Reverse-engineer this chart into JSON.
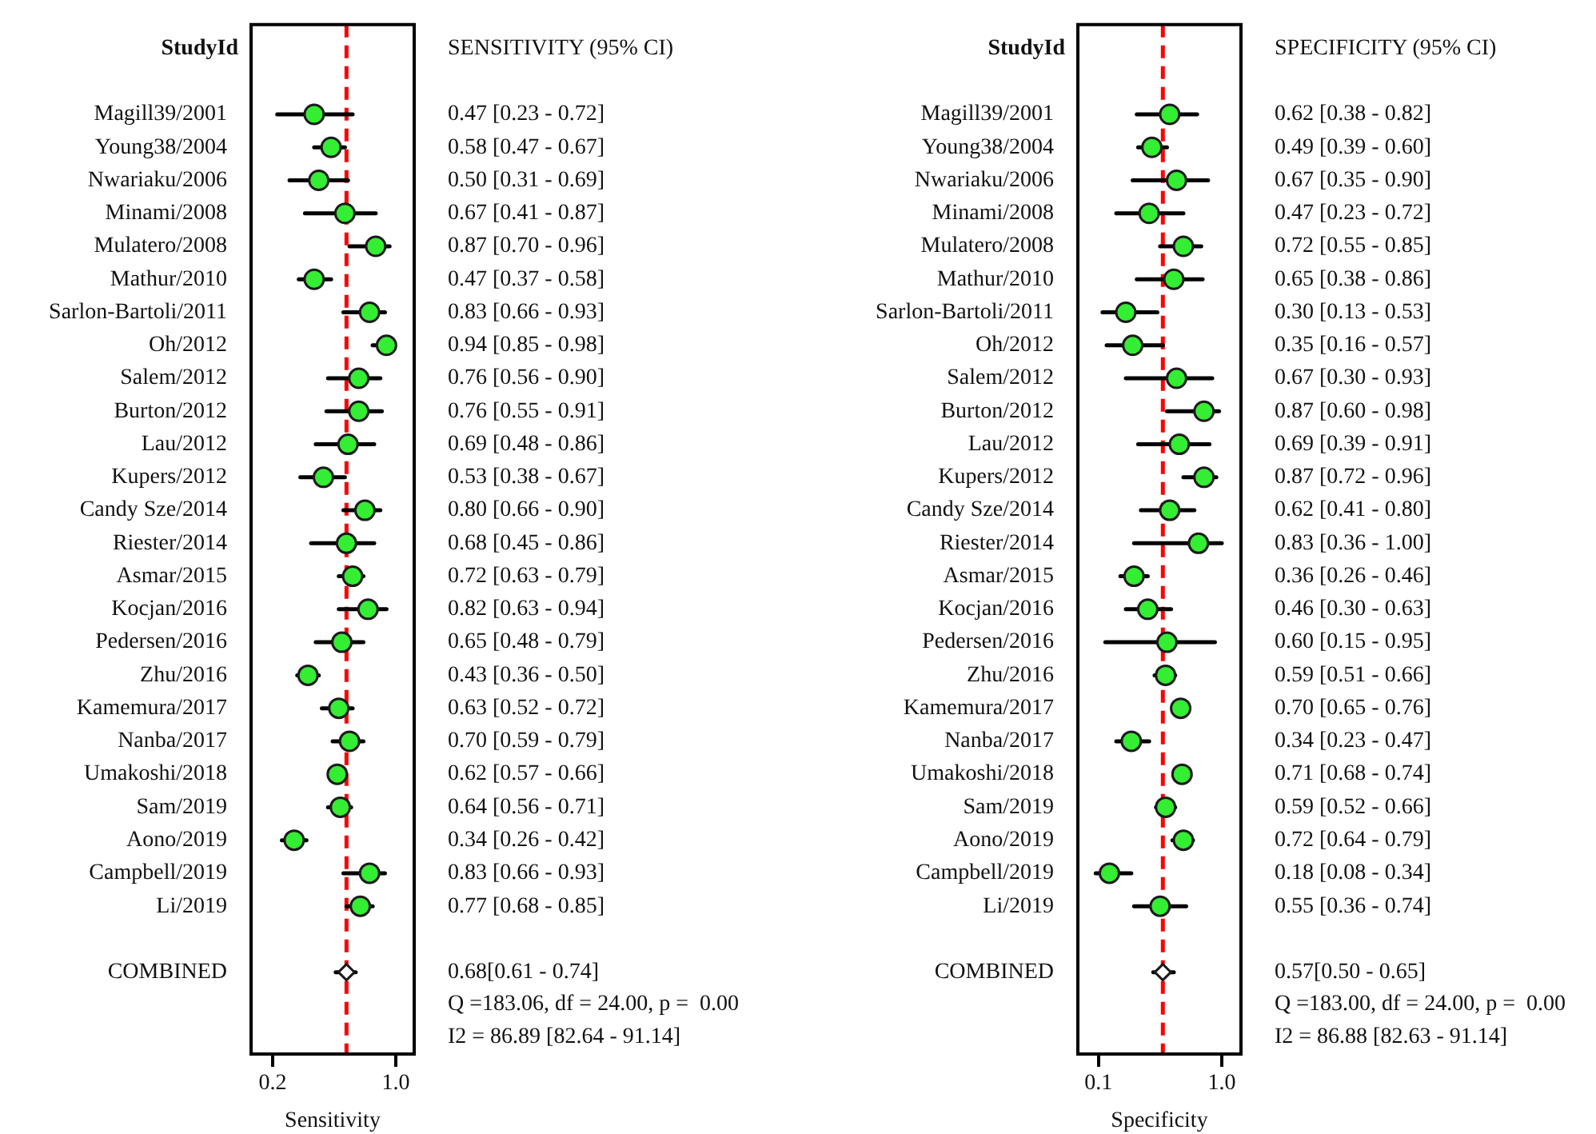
{
  "chart_data": [
    {
      "type": "scatter",
      "orientation": "horizontal",
      "ylabel": "StudyId",
      "xlabel": "Sensitivity",
      "grid": false,
      "legend": false,
      "categories": [
        "Magill39/2001",
        "Young38/2004",
        "Nwariaku/2006",
        "Minami/2008",
        "Mulatero/2008",
        "Mathur/2010",
        "Sarlon-Bartoli/2011",
        "Oh/2012",
        "Salem/2012",
        "Burton/2012",
        "Lau/2012",
        "Kupers/2012",
        "Candy Sze/2014",
        "Riester/2014",
        "Asmar/2015",
        "Kocjan/2016",
        "Pedersen/2016",
        "Zhu/2016",
        "Kamemura/2017",
        "Nanba/2017",
        "Umakoshi/2018",
        "Sam/2019",
        "Aono/2019",
        "Campbell/2019",
        "Li/2019",
        null,
        "COMBINED"
      ],
      "series": [
        {
          "color": "#33ee33",
          "marker": "circle",
          "values": [
            0.47,
            0.58,
            0.5,
            0.67,
            0.87,
            0.47,
            0.83,
            0.94,
            0.76,
            0.76,
            0.69,
            0.53,
            0.8,
            0.68,
            0.72,
            0.82,
            0.65,
            0.43,
            0.63,
            0.7,
            0.62,
            0.64,
            0.34,
            0.83,
            0.77,
            null,
            null
          ],
          "errors": [
            [
              0.23,
              0.72
            ],
            [
              0.47,
              0.67
            ],
            [
              0.31,
              0.69
            ],
            [
              0.41,
              0.87
            ],
            [
              0.7,
              0.96
            ],
            [
              0.37,
              0.58
            ],
            [
              0.66,
              0.93
            ],
            [
              0.85,
              0.98
            ],
            [
              0.56,
              0.9
            ],
            [
              0.55,
              0.91
            ],
            [
              0.48,
              0.86
            ],
            [
              0.38,
              0.67
            ],
            [
              0.66,
              0.9
            ],
            [
              0.45,
              0.86
            ],
            [
              0.63,
              0.79
            ],
            [
              0.63,
              0.94
            ],
            [
              0.48,
              0.79
            ],
            [
              0.36,
              0.5
            ],
            [
              0.52,
              0.72
            ],
            [
              0.59,
              0.79
            ],
            [
              0.57,
              0.66
            ],
            [
              0.56,
              0.71
            ],
            [
              0.26,
              0.42
            ],
            [
              0.66,
              0.93
            ],
            [
              0.68,
              0.85
            ],
            null,
            null
          ],
          "value_labels": [
            "0.47 [0.23 - 0.72]",
            "0.58 [0.47 - 0.67]",
            "0.50 [0.31 - 0.69]",
            "0.67 [0.41 - 0.87]",
            "0.87 [0.70 - 0.96]",
            "0.47 [0.37 - 0.58]",
            "0.83 [0.66 - 0.93]",
            "0.94 [0.85 - 0.98]",
            "0.76 [0.56 - 0.90]",
            "0.76 [0.55 - 0.91]",
            "0.69 [0.48 - 0.86]",
            "0.53 [0.38 - 0.67]",
            "0.80 [0.66 - 0.90]",
            "0.68 [0.45 - 0.86]",
            "0.72 [0.63 - 0.79]",
            "0.82 [0.63 - 0.94]",
            "0.65 [0.48 - 0.79]",
            "0.43 [0.36 - 0.50]",
            "0.63 [0.52 - 0.72]",
            "0.70 [0.59 - 0.79]",
            "0.62 [0.57 - 0.66]",
            "0.64 [0.56 - 0.71]",
            "0.34 [0.26 - 0.42]",
            "0.83 [0.66 - 0.93]",
            "0.77 [0.68 - 0.85]",
            null,
            null
          ]
        },
        {
          "color": "#ffffff",
          "marker": "diamond",
          "values": [
            null,
            null,
            null,
            null,
            null,
            null,
            null,
            null,
            null,
            null,
            null,
            null,
            null,
            null,
            null,
            null,
            null,
            null,
            null,
            null,
            null,
            null,
            null,
            null,
            null,
            null,
            0.68
          ],
          "errors": [
            null,
            null,
            null,
            null,
            null,
            null,
            null,
            null,
            null,
            null,
            null,
            null,
            null,
            null,
            null,
            null,
            null,
            null,
            null,
            null,
            null,
            null,
            null,
            null,
            null,
            null,
            [
              0.61,
              0.74
            ]
          ]
        }
      ],
      "xlim": [
        0.06,
        1.12
      ],
      "xticks": [
        0.2,
        {
          "value": 1,
          "label": "1.0"
        }
      ],
      "ref_lines": [
        {
          "axis": "x",
          "value": 0.68,
          "color": "#ff0000",
          "line_style": "dashed"
        }
      ],
      "annotations": [
        "SENSITIVITY (95% CI)",
        "0.68[0.61 - 0.74]",
        "Q =183.06, df = 24.00, p =  0.00",
        "I2 = 86.89 [82.64 - 91.14]"
      ]
    },
    {
      "type": "scatter",
      "orientation": "horizontal",
      "ylabel": "StudyId",
      "xlabel": "Specificity",
      "grid": false,
      "legend": false,
      "categories": [
        "Magill39/2001",
        "Young38/2004",
        "Nwariaku/2006",
        "Minami/2008",
        "Mulatero/2008",
        "Mathur/2010",
        "Sarlon-Bartoli/2011",
        "Oh/2012",
        "Salem/2012",
        "Burton/2012",
        "Lau/2012",
        "Kupers/2012",
        "Candy Sze/2014",
        "Riester/2014",
        "Asmar/2015",
        "Kocjan/2016",
        "Pedersen/2016",
        "Zhu/2016",
        "Kamemura/2017",
        "Nanba/2017",
        "Umakoshi/2018",
        "Sam/2019",
        "Aono/2019",
        "Campbell/2019",
        "Li/2019",
        null,
        "COMBINED"
      ],
      "series": [
        {
          "color": "#33ee33",
          "marker": "circle",
          "values": [
            0.62,
            0.49,
            0.67,
            0.47,
            0.72,
            0.65,
            0.3,
            0.35,
            0.67,
            0.87,
            0.69,
            0.87,
            0.62,
            0.83,
            0.36,
            0.46,
            0.6,
            0.59,
            0.7,
            0.34,
            0.71,
            0.59,
            0.72,
            0.18,
            0.55,
            null,
            null
          ],
          "errors": [
            [
              0.38,
              0.82
            ],
            [
              0.39,
              0.6
            ],
            [
              0.35,
              0.9
            ],
            [
              0.23,
              0.72
            ],
            [
              0.55,
              0.85
            ],
            [
              0.38,
              0.86
            ],
            [
              0.13,
              0.53
            ],
            [
              0.16,
              0.57
            ],
            [
              0.3,
              0.93
            ],
            [
              0.6,
              0.98
            ],
            [
              0.39,
              0.91
            ],
            [
              0.72,
              0.96
            ],
            [
              0.41,
              0.8
            ],
            [
              0.36,
              1.0
            ],
            [
              0.26,
              0.46
            ],
            [
              0.3,
              0.63
            ],
            [
              0.15,
              0.95
            ],
            [
              0.51,
              0.66
            ],
            [
              0.65,
              0.76
            ],
            [
              0.23,
              0.47
            ],
            null,
            [
              0.52,
              0.66
            ],
            [
              0.64,
              0.79
            ],
            [
              0.08,
              0.34
            ],
            [
              0.36,
              0.74
            ],
            null,
            null
          ],
          "value_labels": [
            "0.62 [0.38 - 0.82]",
            "0.49 [0.39 - 0.60]",
            "0.67 [0.35 - 0.90]",
            "0.47 [0.23 - 0.72]",
            "0.72 [0.55 - 0.85]",
            "0.65 [0.38 - 0.86]",
            "0.30 [0.13 - 0.53]",
            "0.35 [0.16 - 0.57]",
            "0.67 [0.30 - 0.93]",
            "0.87 [0.60 - 0.98]",
            "0.69 [0.39 - 0.91]",
            "0.87 [0.72 - 0.96]",
            "0.62 [0.41 - 0.80]",
            "0.83 [0.36 - 1.00]",
            "0.36 [0.26 - 0.46]",
            "0.46 [0.30 - 0.63]",
            "0.60 [0.15 - 0.95]",
            "0.59 [0.51 - 0.66]",
            "0.70 [0.65 - 0.76]",
            "0.34 [0.23 - 0.47]",
            "0.71 [0.68 - 0.74]",
            "0.59 [0.52 - 0.66]",
            "0.72 [0.64 - 0.79]",
            "0.18 [0.08 - 0.34]",
            "0.55 [0.36 - 0.74]",
            null,
            null
          ]
        },
        {
          "color": "#ffffff",
          "marker": "diamond",
          "values": [
            null,
            null,
            null,
            null,
            null,
            null,
            null,
            null,
            null,
            null,
            null,
            null,
            null,
            null,
            null,
            null,
            null,
            null,
            null,
            null,
            null,
            null,
            null,
            null,
            null,
            null,
            0.57
          ],
          "errors": [
            null,
            null,
            null,
            null,
            null,
            null,
            null,
            null,
            null,
            null,
            null,
            null,
            null,
            null,
            null,
            null,
            null,
            null,
            null,
            null,
            null,
            null,
            null,
            null,
            null,
            null,
            [
              0.5,
              0.65
            ]
          ]
        }
      ],
      "xlim": [
        -0.05,
        1.14
      ],
      "xticks": [
        0.1,
        {
          "value": 1,
          "label": "1.0"
        }
      ],
      "ref_lines": [
        {
          "axis": "x",
          "value": 0.57,
          "color": "#ff0000",
          "line_style": "dashed"
        }
      ],
      "annotations": [
        "SPECIFICITY (95% CI)",
        "0.57[0.50 - 0.65]",
        "Q =183.00, df = 24.00, p =  0.00",
        "I2 = 86.88 [82.63 - 91.14]"
      ]
    }
  ]
}
